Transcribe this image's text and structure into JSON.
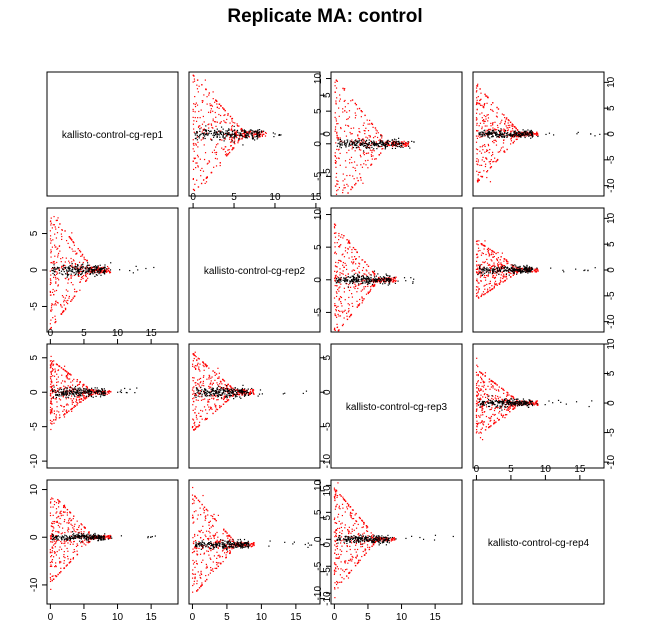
{
  "title": "Replicate MA: control",
  "colors": {
    "background": "#ffffff",
    "axis": "#000000",
    "point_default": "#000000",
    "point_highlight": "#ff0000"
  },
  "chart_data": {
    "type": "scatter",
    "layout": "4x4 pairs matrix",
    "title": "Replicate MA: control",
    "samples": [
      "kallisto-control-cg-rep1",
      "kallisto-control-cg-rep2",
      "kallisto-control-cg-rep3",
      "kallisto-control-cg-rep4"
    ],
    "legend": "none",
    "grid": false,
    "series": [
      {
        "name": "",
        "color": "#000000"
      },
      {
        "name": "",
        "color": "#ff0000"
      }
    ],
    "panels": [
      {
        "row": 1,
        "col": 1,
        "type": "label",
        "label": "kallisto-control-cg-rep1"
      },
      {
        "row": 1,
        "col": 2,
        "type": "scatter",
        "x_ticks": [],
        "y_ticks": [
          -5,
          0,
          5
        ],
        "xlim": [
          -0.5,
          15.5
        ],
        "ylim": [
          -8,
          8
        ],
        "x_max": 11,
        "ymax_red": 8,
        "ymin_red": -8.5
      },
      {
        "row": 1,
        "col": 3,
        "type": "scatter",
        "x_ticks": [],
        "y_ticks": [
          -5,
          0,
          5,
          10
        ],
        "xlim": [
          -0.5,
          15.5
        ],
        "ylim": [
          -8,
          11
        ],
        "x_max": 10,
        "ymax_red": 10.5,
        "ymin_red": -7
      },
      {
        "row": 1,
        "col": 4,
        "type": "scatter",
        "x_ticks": [],
        "y_ticks": [
          -10,
          -5,
          0,
          5,
          10
        ],
        "xlim": [
          -0.5,
          18.5
        ],
        "ylim": [
          -12,
          12
        ],
        "x_max": 18,
        "ymax_red": 10,
        "ymin_red": -11
      },
      {
        "row": 2,
        "col": 1,
        "type": "scatter",
        "x_ticks": [],
        "y_ticks": [
          -5,
          0,
          5
        ],
        "xlim": [
          -0.5,
          19
        ],
        "ylim": [
          -8.5,
          8.5
        ],
        "x_max": 16,
        "ymax_red": 8.5,
        "ymin_red": -8
      },
      {
        "row": 2,
        "col": 2,
        "type": "label",
        "label": "kallisto-control-cg-rep2"
      },
      {
        "row": 2,
        "col": 3,
        "type": "scatter",
        "x_ticks": [],
        "y_ticks": [
          -5,
          0,
          5,
          10
        ],
        "xlim": [
          -0.5,
          18.5
        ],
        "ylim": [
          -8,
          11
        ],
        "x_max": 12,
        "ymax_red": 9,
        "ymin_red": -7
      },
      {
        "row": 2,
        "col": 4,
        "type": "scatter",
        "x_ticks": [],
        "y_ticks": [
          -10,
          -5,
          0,
          5,
          10
        ],
        "xlim": [
          -0.5,
          18.5
        ],
        "ylim": [
          -12,
          12
        ],
        "x_max": 18,
        "ymax_red": 6,
        "ymin_red": -9
      },
      {
        "row": 3,
        "col": 1,
        "type": "scatter",
        "x_ticks": [],
        "y_ticks": [
          -10,
          -5,
          0,
          5
        ],
        "xlim": [
          -0.5,
          19
        ],
        "ylim": [
          -11,
          7
        ],
        "x_max": 13,
        "ymax_red": 5,
        "ymin_red": -10
      },
      {
        "row": 3,
        "col": 2,
        "type": "scatter",
        "x_ticks": [],
        "y_ticks": [
          -10,
          -5,
          0,
          5
        ],
        "xlim": [
          -0.5,
          18.5
        ],
        "ylim": [
          -11,
          7
        ],
        "x_max": 17,
        "ymax_red": 6,
        "ymin_red": -10.5
      },
      {
        "row": 3,
        "col": 3,
        "type": "label",
        "label": "kallisto-control-cg-rep3"
      },
      {
        "row": 3,
        "col": 4,
        "type": "scatter",
        "x_ticks": [],
        "y_ticks": [
          -10,
          -5,
          0,
          5,
          10
        ],
        "xlim": [
          -0.5,
          18.5
        ],
        "ylim": [
          -11,
          10
        ],
        "x_max": 18,
        "ymax_red": 6,
        "ymin_red": -10
      },
      {
        "row": 4,
        "col": 1,
        "type": "scatter",
        "x_ticks": [
          0,
          5,
          10,
          15
        ],
        "y_ticks": [
          -10,
          0,
          10
        ],
        "xlim": [
          -0.5,
          19
        ],
        "ylim": [
          -14,
          12
        ],
        "x_max": 16,
        "ymax_red": 10,
        "ymin_red": -12
      },
      {
        "row": 4,
        "col": 2,
        "type": "scatter",
        "x_ticks": [
          0,
          5,
          10,
          15
        ],
        "y_ticks": [
          -10,
          -5,
          0,
          5,
          10
        ],
        "xlim": [
          -0.5,
          18.5
        ],
        "ylim": [
          -11,
          12
        ],
        "x_max": 18,
        "ymax_red": 10,
        "ymin_red": -11
      },
      {
        "row": 4,
        "col": 3,
        "type": "scatter",
        "x_ticks": [
          0,
          5,
          10,
          15
        ],
        "y_ticks": [
          -10,
          -5,
          0,
          5,
          10
        ],
        "xlim": [
          -0.5,
          19
        ],
        "ylim": [
          -12,
          11
        ],
        "x_max": 18,
        "ymax_red": 10,
        "ymin_red": -11
      },
      {
        "row": 4,
        "col": 4,
        "type": "label",
        "label": "kallisto-control-cg-rep4"
      }
    ],
    "top_x_ticks": {
      "2": [
        0,
        5,
        10,
        15
      ],
      "3": [
        0,
        5,
        10,
        15
      ],
      "4": [
        0,
        5,
        10,
        15
      ]
    },
    "bottom_x_ticks": {
      "1": [
        0,
        5,
        10,
        15
      ],
      "2": [
        0,
        5,
        10,
        15
      ],
      "3": [
        0,
        5,
        10,
        15
      ]
    }
  }
}
